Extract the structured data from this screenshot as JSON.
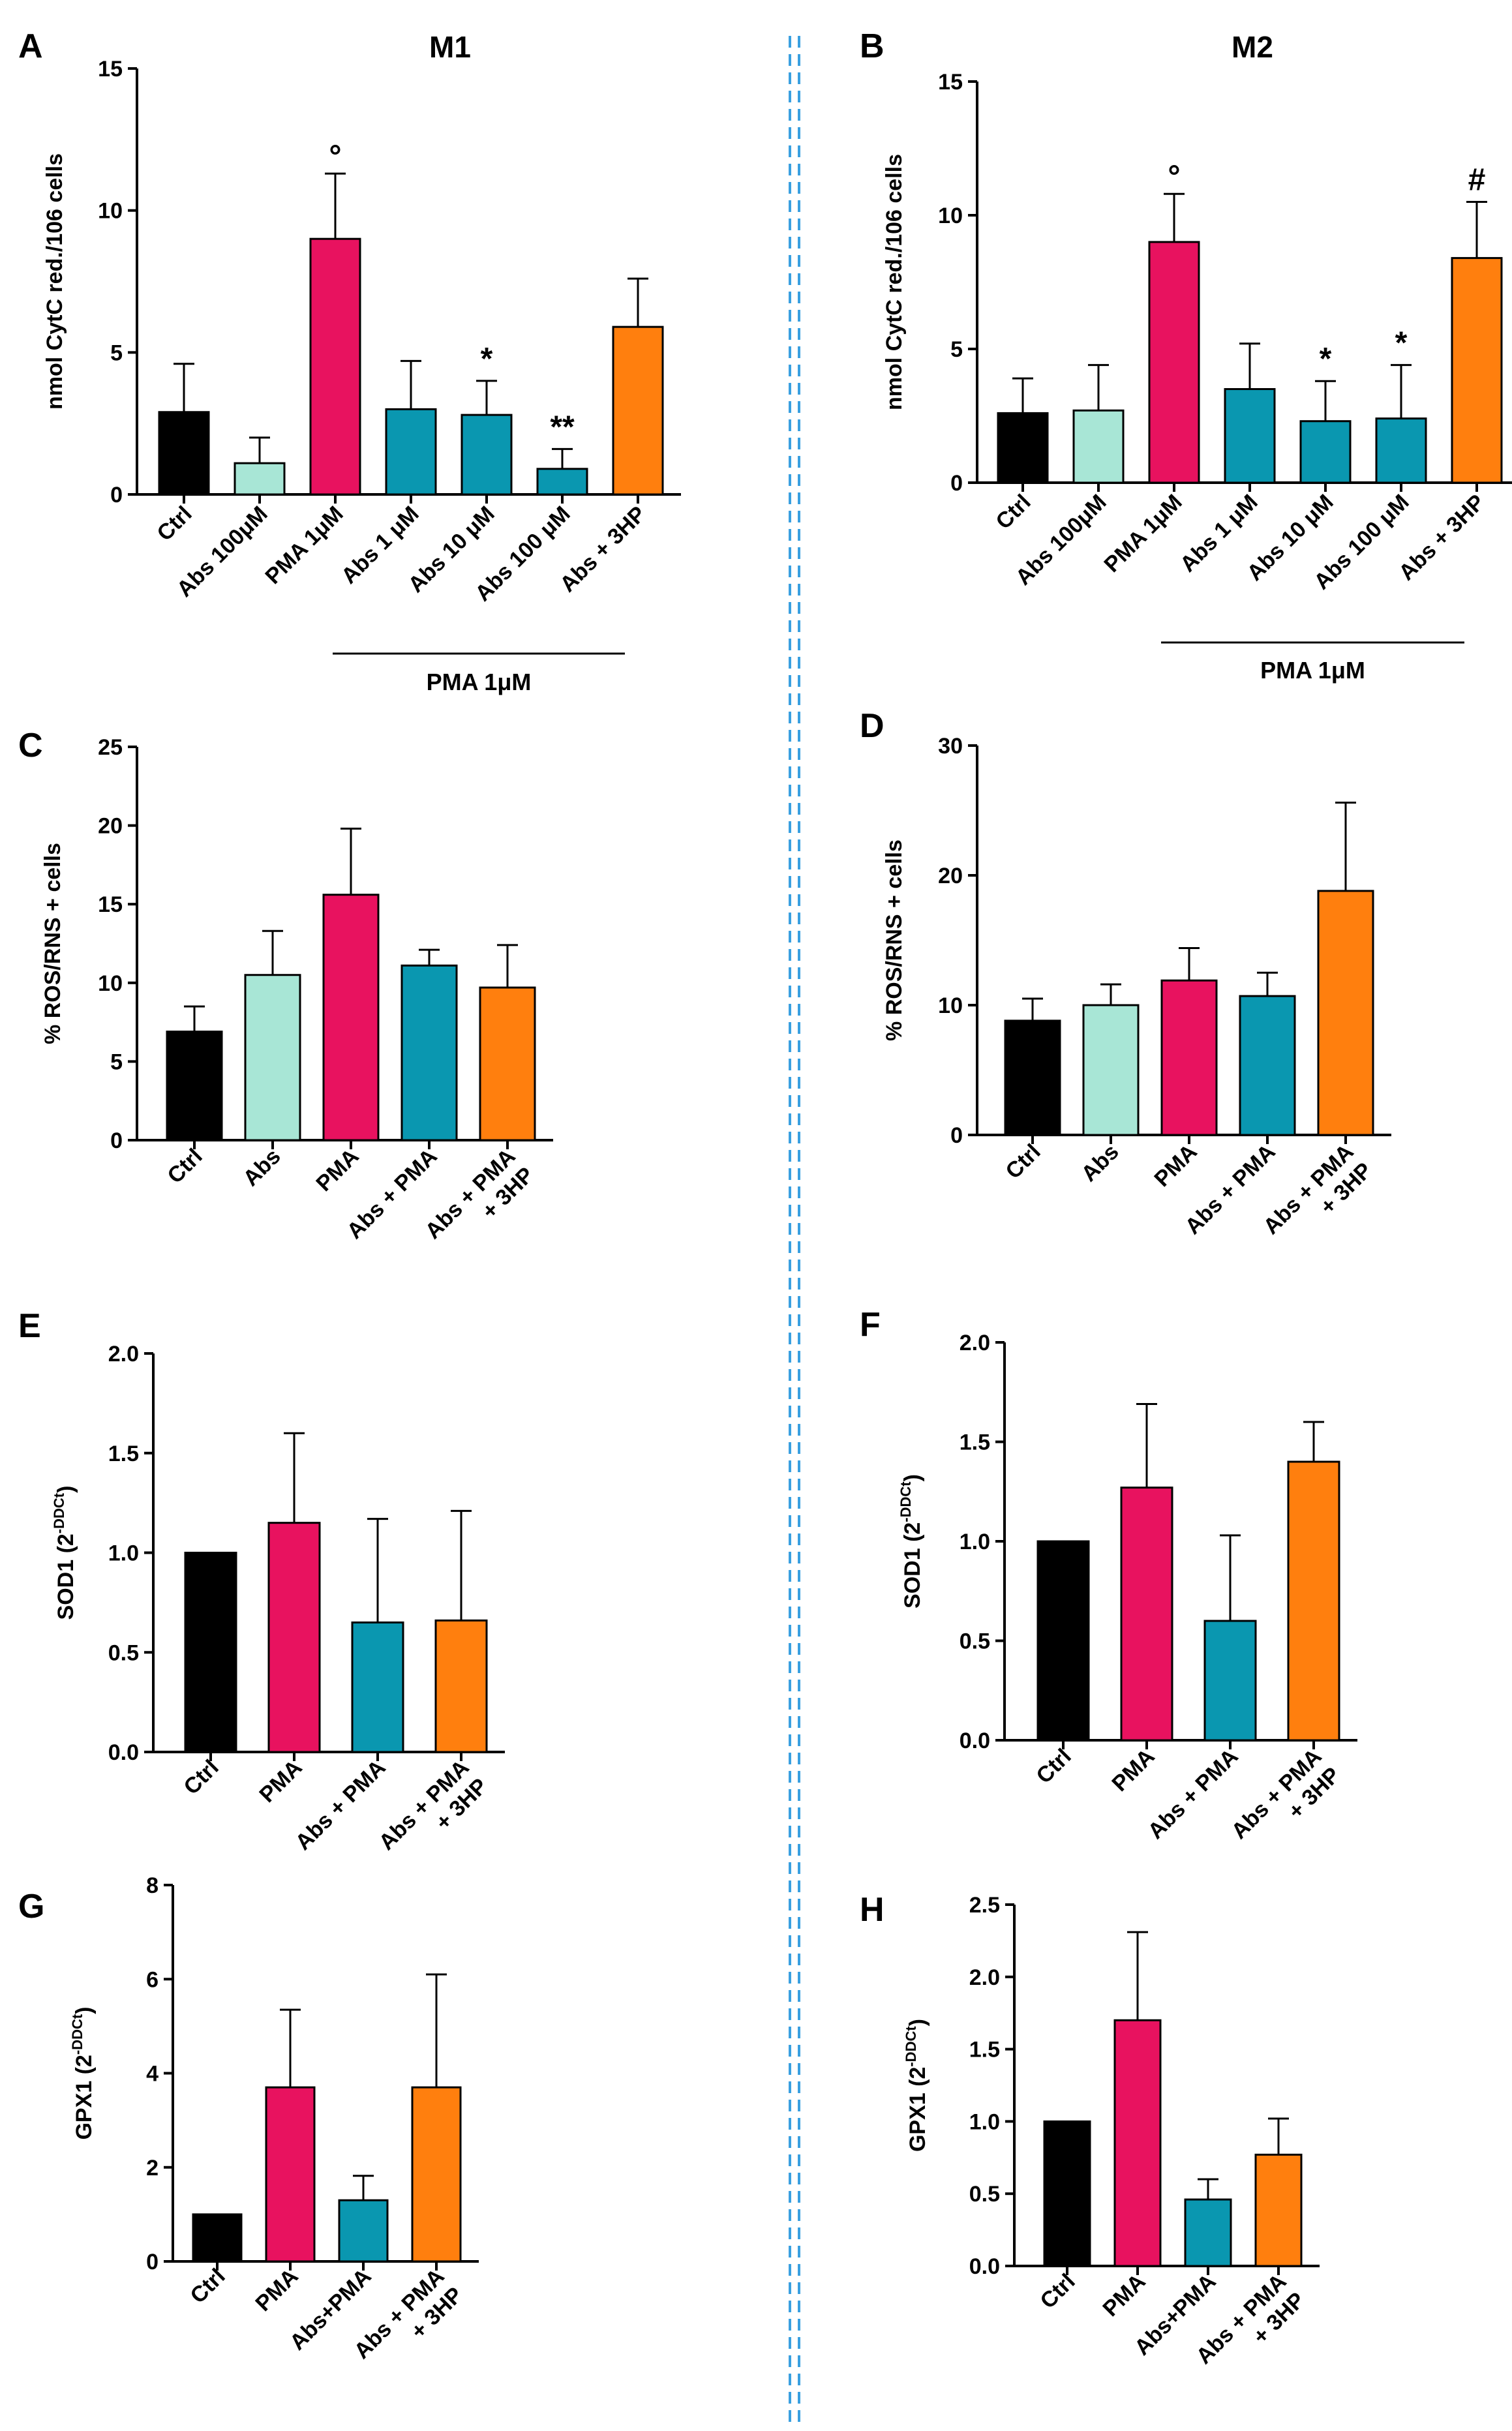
{
  "colors": {
    "Ctrl": "#000000",
    "Abs": "#a8e6d6",
    "PMA": "#e8125f",
    "AbsPMA": "#0a97b0",
    "3HP": "#ff7f0e",
    "divider": "#3aa0e0"
  },
  "chart_data": [
    {
      "id": "A",
      "letter": "A",
      "title": "M1",
      "type": "bar",
      "ylabel": "nmol CytC red./106 cells",
      "ylim": [
        0,
        15
      ],
      "yticks": [
        "0",
        "5",
        "10",
        "15"
      ],
      "ytick_values": [
        0,
        5,
        10,
        15
      ],
      "categories": [
        "Ctrl",
        "Abs 100μM",
        "PMA 1μM",
        "Abs 1 μM",
        "Abs 10 μM",
        "Abs 100 μM",
        "Abs + 3HP"
      ],
      "values": [
        2.9,
        1.1,
        9.0,
        3.0,
        2.8,
        0.9,
        5.9
      ],
      "errors": [
        1.7,
        0.9,
        2.3,
        1.7,
        1.2,
        0.7,
        1.7
      ],
      "color_keys": [
        "Ctrl",
        "Abs",
        "PMA",
        "AbsPMA",
        "AbsPMA",
        "AbsPMA",
        "3HP"
      ],
      "significance": [
        "",
        "",
        "°",
        "",
        "*",
        "**",
        ""
      ],
      "bracket": {
        "label": "PMA 1μM",
        "from": 3,
        "to": 6
      }
    },
    {
      "id": "B",
      "letter": "B",
      "title": "M2",
      "type": "bar",
      "ylabel": "nmol CytC red./106 cells",
      "ylim": [
        0,
        15
      ],
      "yticks": [
        "0",
        "5",
        "10",
        "15"
      ],
      "ytick_values": [
        0,
        5,
        10,
        15
      ],
      "categories": [
        "Ctrl",
        "Abs 100μM",
        "PMA 1μM",
        "Abs 1 μM",
        "Abs 10 μM",
        "Abs 100 μM",
        "Abs + 3HP"
      ],
      "values": [
        2.6,
        2.7,
        9.0,
        3.5,
        2.3,
        2.4,
        8.4
      ],
      "errors": [
        1.3,
        1.7,
        1.8,
        1.7,
        1.5,
        2.0,
        2.1
      ],
      "color_keys": [
        "Ctrl",
        "Abs",
        "PMA",
        "AbsPMA",
        "AbsPMA",
        "AbsPMA",
        "3HP"
      ],
      "significance": [
        "",
        "",
        "°",
        "",
        "*",
        "*",
        "#"
      ],
      "bracket": {
        "label": "PMA 1μM",
        "from": 3,
        "to": 6
      }
    },
    {
      "id": "C",
      "letter": "C",
      "title": "",
      "type": "bar",
      "ylabel": "% ROS/RNS + cells",
      "ylim": [
        0,
        25
      ],
      "yticks": [
        "0",
        "5",
        "10",
        "15",
        "20",
        "25"
      ],
      "ytick_values": [
        0,
        5,
        10,
        15,
        20,
        25
      ],
      "categories": [
        "Ctrl",
        "Abs",
        "PMA",
        "Abs + PMA",
        "Abs + PMA\n+ 3HP"
      ],
      "values": [
        6.9,
        10.5,
        15.6,
        11.1,
        9.7
      ],
      "errors": [
        1.6,
        2.8,
        4.2,
        1.0,
        2.7
      ],
      "color_keys": [
        "Ctrl",
        "Abs",
        "PMA",
        "AbsPMA",
        "3HP"
      ],
      "significance": [
        "",
        "",
        "",
        "",
        ""
      ]
    },
    {
      "id": "D",
      "letter": "D",
      "title": "",
      "type": "bar",
      "ylabel": "% ROS/RNS + cells",
      "ylim": [
        0,
        30
      ],
      "yticks": [
        "0",
        "10",
        "20",
        "30"
      ],
      "ytick_values": [
        0,
        10,
        20,
        30
      ],
      "categories": [
        "Ctrl",
        "Abs",
        "PMA",
        "Abs + PMA",
        "Abs + PMA\n+ 3HP"
      ],
      "values": [
        8.8,
        10.0,
        11.9,
        10.7,
        18.8
      ],
      "errors": [
        1.7,
        1.6,
        2.5,
        1.8,
        6.8
      ],
      "color_keys": [
        "Ctrl",
        "Abs",
        "PMA",
        "AbsPMA",
        "3HP"
      ],
      "significance": [
        "",
        "",
        "",
        "",
        ""
      ]
    },
    {
      "id": "E",
      "letter": "E",
      "title": "",
      "type": "bar",
      "ylabel": "SOD1 (2-DDCt)",
      "ylabel_main": "SOD1 (2",
      "ylabel_sup": "-DDCt",
      "ylabel_end": ")",
      "ylim": [
        0,
        2
      ],
      "yticks": [
        "0.0",
        "0.5",
        "1.0",
        "1.5",
        "2.0"
      ],
      "ytick_values": [
        0,
        0.5,
        1.0,
        1.5,
        2.0
      ],
      "categories": [
        "Ctrl",
        "PMA",
        "Abs + PMA",
        "Abs + PMA\n+ 3HP"
      ],
      "values": [
        1.0,
        1.15,
        0.65,
        0.66
      ],
      "errors": [
        0,
        0.45,
        0.52,
        0.55
      ],
      "color_keys": [
        "Ctrl",
        "PMA",
        "AbsPMA",
        "3HP"
      ],
      "significance": [
        "",
        "",
        "",
        ""
      ]
    },
    {
      "id": "F",
      "letter": "F",
      "title": "",
      "type": "bar",
      "ylabel": "SOD1 (2-DDCt)",
      "ylabel_main": "SOD1 (2",
      "ylabel_sup": "-DDCt",
      "ylabel_end": ")",
      "ylim": [
        0,
        2
      ],
      "yticks": [
        "0.0",
        "0.5",
        "1.0",
        "1.5",
        "2.0"
      ],
      "ytick_values": [
        0,
        0.5,
        1.0,
        1.5,
        2.0
      ],
      "categories": [
        "Ctrl",
        "PMA",
        "Abs + PMA",
        "Abs + PMA\n+ 3HP"
      ],
      "values": [
        1.0,
        1.27,
        0.6,
        1.4
      ],
      "errors": [
        0,
        0.42,
        0.43,
        0.2
      ],
      "color_keys": [
        "Ctrl",
        "PMA",
        "AbsPMA",
        "3HP"
      ],
      "significance": [
        "",
        "",
        "",
        ""
      ]
    },
    {
      "id": "G",
      "letter": "G",
      "title": "",
      "type": "bar",
      "ylabel": "GPX1 (2-DDCt)",
      "ylabel_main": "GPX1 (2",
      "ylabel_sup": "-DDCt",
      "ylabel_end": ")",
      "ylim": [
        0,
        8
      ],
      "yticks": [
        "0",
        "2",
        "4",
        "6",
        "8"
      ],
      "ytick_values": [
        0,
        2,
        4,
        6,
        8
      ],
      "categories": [
        "Ctrl",
        "PMA",
        "Abs+PMA",
        "Abs + PMA\n+ 3HP"
      ],
      "values": [
        1.0,
        3.7,
        1.3,
        3.7
      ],
      "errors": [
        0,
        1.65,
        0.52,
        2.4
      ],
      "color_keys": [
        "Ctrl",
        "PMA",
        "AbsPMA",
        "3HP"
      ],
      "significance": [
        "",
        "",
        "",
        ""
      ]
    },
    {
      "id": "H",
      "letter": "H",
      "title": "",
      "type": "bar",
      "ylabel": "GPX1 (2-DDCt)",
      "ylabel_main": "GPX1 (2",
      "ylabel_sup": "-DDCt",
      "ylabel_end": ")",
      "ylim": [
        0,
        2.5
      ],
      "yticks": [
        "0.0",
        "0.5",
        "1.0",
        "1.5",
        "2.0",
        "2.5"
      ],
      "ytick_values": [
        0,
        0.5,
        1.0,
        1.5,
        2.0,
        2.5
      ],
      "categories": [
        "Ctrl",
        "PMA",
        "Abs+PMA",
        "Abs + PMA\n+ 3HP"
      ],
      "values": [
        1.0,
        1.7,
        0.46,
        0.77
      ],
      "errors": [
        0,
        0.61,
        0.14,
        0.25
      ],
      "color_keys": [
        "Ctrl",
        "PMA",
        "AbsPMA",
        "3HP"
      ],
      "significance": [
        "",
        "",
        "",
        ""
      ]
    }
  ]
}
